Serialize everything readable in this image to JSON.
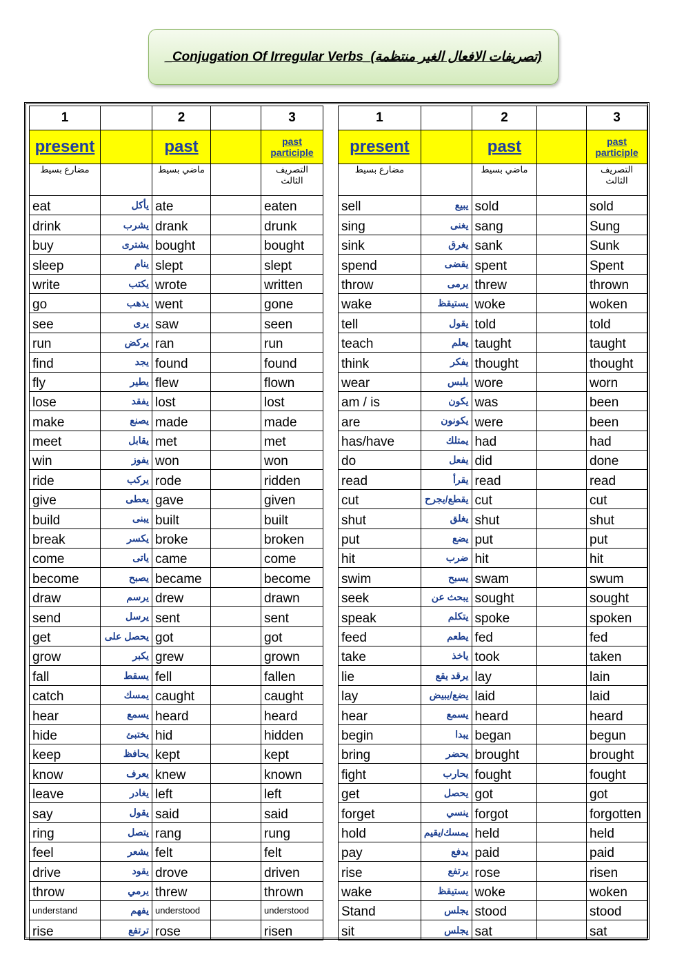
{
  "title": {
    "english": "_Conjugation Of Irregular Verbs_",
    "arabic": "(تصريفات الافعال الغير منتظمة)"
  },
  "left": {
    "numbers": [
      "1",
      "2",
      "3"
    ],
    "labels": [
      "present",
      "past",
      "past participle"
    ],
    "arabic_labels": [
      "مضارع بسيط",
      "ماضي بسيط",
      "التصريف الثالث"
    ],
    "rows": [
      [
        "eat",
        "يأكل",
        "ate",
        "eaten"
      ],
      [
        "drink",
        "يشرب",
        "drank",
        "drunk"
      ],
      [
        "buy",
        "يشترى",
        "bought",
        "bought"
      ],
      [
        "sleep",
        "ينام",
        "slept",
        "slept"
      ],
      [
        "write",
        "يكتب",
        "wrote",
        "written"
      ],
      [
        "go",
        "يذهب",
        "went",
        "gone"
      ],
      [
        "see",
        "يرى",
        "saw",
        "seen"
      ],
      [
        "run",
        "يركض",
        "ran",
        "run"
      ],
      [
        "find",
        "يجد",
        "found",
        "found"
      ],
      [
        "fly",
        "يطير",
        "flew",
        "flown"
      ],
      [
        "lose",
        "يفقد",
        "lost",
        "lost"
      ],
      [
        "make",
        "يصنع",
        "made",
        "made"
      ],
      [
        "meet",
        "يقابل",
        "met",
        "met"
      ],
      [
        "win",
        "يفوز",
        "won",
        "won"
      ],
      [
        "ride",
        "يركب",
        "rode",
        "ridden"
      ],
      [
        "give",
        "يعطى",
        "gave",
        "given"
      ],
      [
        "build",
        "يبنى",
        "built",
        "built"
      ],
      [
        "break",
        "يكسر",
        "broke",
        "broken"
      ],
      [
        "come",
        "ياتى",
        "came",
        "come"
      ],
      [
        "become",
        "يصبح",
        "became",
        "become"
      ],
      [
        "draw",
        "يرسم",
        "drew",
        "drawn"
      ],
      [
        "send",
        "يرسل",
        "sent",
        "sent"
      ],
      [
        "get",
        "يحصل على",
        "got",
        "got"
      ],
      [
        "grow",
        "يكبر",
        "grew",
        "grown"
      ],
      [
        "fall",
        "يسقط",
        "fell",
        "fallen"
      ],
      [
        "catch",
        "يمسك",
        "caught",
        "caught"
      ],
      [
        "hear",
        "يسمع",
        "heard",
        "heard"
      ],
      [
        "hide",
        "يختبئ",
        "hid",
        "hidden"
      ],
      [
        "keep",
        "يحافظ",
        "kept",
        "kept"
      ],
      [
        "know",
        "يعرف",
        "knew",
        "known"
      ],
      [
        "leave",
        "يغادر",
        "left",
        "left"
      ],
      [
        "say",
        "يقول",
        "said",
        "said"
      ],
      [
        "ring",
        "يتصل",
        "rang",
        "rung"
      ],
      [
        "feel",
        "يشعر",
        "felt",
        "felt"
      ],
      [
        "drive",
        "يقود",
        "drove",
        "driven"
      ],
      [
        "throw",
        "يرمي",
        "threw",
        "thrown"
      ],
      [
        "understand",
        "يفهم",
        "understood",
        "understood"
      ],
      [
        "rise",
        "ترتفع",
        "rose",
        "risen"
      ]
    ]
  },
  "right": {
    "numbers": [
      "1",
      "2",
      "3"
    ],
    "labels": [
      "present",
      "past",
      "past participle"
    ],
    "arabic_labels": [
      "مضارع بسيط",
      "ماضي بسيط",
      "التصريف الثالث"
    ],
    "rows": [
      [
        "sell",
        "يبيع",
        "sold",
        "sold"
      ],
      [
        "sing",
        "يغنى",
        "sang",
        "Sung"
      ],
      [
        "sink",
        "يغرق",
        "sank",
        "Sunk"
      ],
      [
        "spend",
        "يقضى",
        "spent",
        "Spent"
      ],
      [
        "throw",
        "يرمى",
        "threw",
        "thrown"
      ],
      [
        "wake",
        "يستيقظ",
        "woke",
        "woken"
      ],
      [
        "tell",
        "يقول",
        "told",
        "told"
      ],
      [
        "teach",
        "يعلم",
        "taught",
        "taught"
      ],
      [
        "think",
        "يفكر",
        "thought",
        "thought"
      ],
      [
        "wear",
        "يلبس",
        "wore",
        "worn"
      ],
      [
        "am / is",
        "يكون",
        "was",
        "been"
      ],
      [
        "are",
        "يكونون",
        "were",
        "been"
      ],
      [
        "has/have",
        "يمتلك",
        "had",
        "had"
      ],
      [
        "do",
        "يفعل",
        "did",
        "done"
      ],
      [
        "read",
        "يقرأ",
        "read",
        "read"
      ],
      [
        "cut",
        "يقطع/يجرح",
        "cut",
        "cut"
      ],
      [
        "shut",
        "يغلق",
        "shut",
        "shut"
      ],
      [
        "put",
        "يضع",
        "put",
        "put"
      ],
      [
        "hit",
        "ضرب",
        "hit",
        "hit"
      ],
      [
        "swim",
        "يسبح",
        "swam",
        "swum"
      ],
      [
        "seek",
        "يبحث عن",
        "sought",
        "sought"
      ],
      [
        "speak",
        "يتكلم",
        "spoke",
        "spoken"
      ],
      [
        "feed",
        "يطعم",
        "fed",
        "fed"
      ],
      [
        "take",
        "ياخذ",
        "took",
        "taken"
      ],
      [
        "lie",
        "يرقد يقع",
        "lay",
        "lain"
      ],
      [
        "lay",
        "يضع/يبيض",
        "laid",
        "laid"
      ],
      [
        "hear",
        "يسمع",
        "heard",
        "heard"
      ],
      [
        "begin",
        "يبدا",
        "began",
        "begun"
      ],
      [
        "bring",
        "يحضر",
        "brought",
        "brought"
      ],
      [
        "fight",
        "يحارب",
        "fought",
        "fought"
      ],
      [
        "get",
        "يحصل",
        "got",
        "got"
      ],
      [
        "forget",
        "ينسي",
        "forgot",
        "forgotten"
      ],
      [
        "hold",
        "يمسك/يقيم",
        "held",
        "held"
      ],
      [
        "pay",
        "يدفع",
        "paid",
        "paid"
      ],
      [
        "rise",
        "يرتفع",
        "rose",
        "risen"
      ],
      [
        "wake",
        "يستيقظ",
        "woke",
        "woken"
      ],
      [
        "Stand",
        "يجلس",
        "stood",
        "stood"
      ],
      [
        "sit",
        "يجلس",
        "sat",
        "sat"
      ]
    ]
  }
}
